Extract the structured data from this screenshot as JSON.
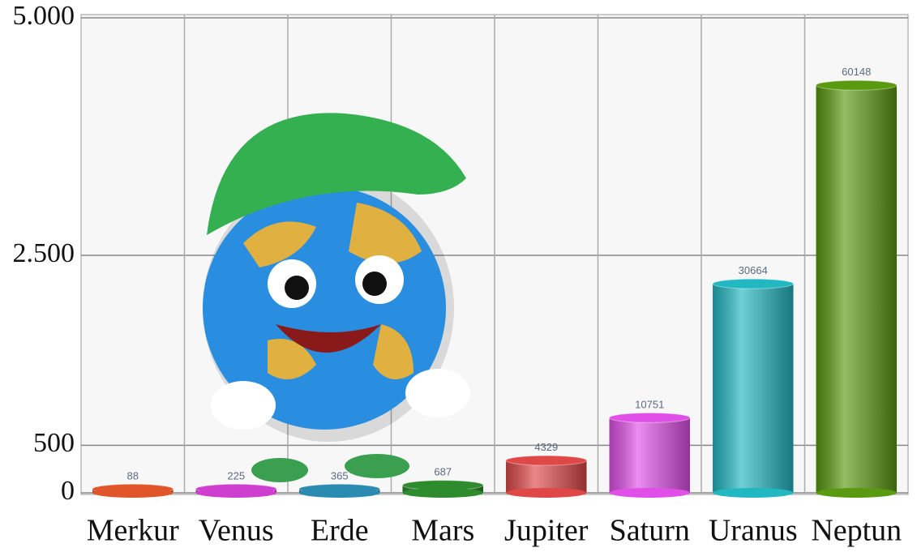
{
  "chart_data": {
    "type": "bar",
    "categories": [
      "Merkur",
      "Venus",
      "Erde",
      "Mars",
      "Jupiter",
      "Saturn",
      "Uranus",
      "Neptun"
    ],
    "values": [
      40,
      40,
      40,
      80,
      340,
      790,
      2200,
      4290
    ],
    "annotations": [
      "88",
      "225",
      "365",
      "687",
      "4329",
      "10751",
      "30664",
      "60148"
    ],
    "colors": [
      "#e0552a",
      "#cf3fcf",
      "#2a8ab0",
      "#2e8b2e",
      "#e04848",
      "#e050e8",
      "#22b8c2",
      "#5a9a10"
    ],
    "ylim": [
      0,
      5000
    ],
    "yticks": [
      0,
      500,
      {
        "value": 2500,
        "label": "2.500"
      },
      {
        "value": 5000,
        "label": "5.000"
      }
    ],
    "grid": true
  }
}
